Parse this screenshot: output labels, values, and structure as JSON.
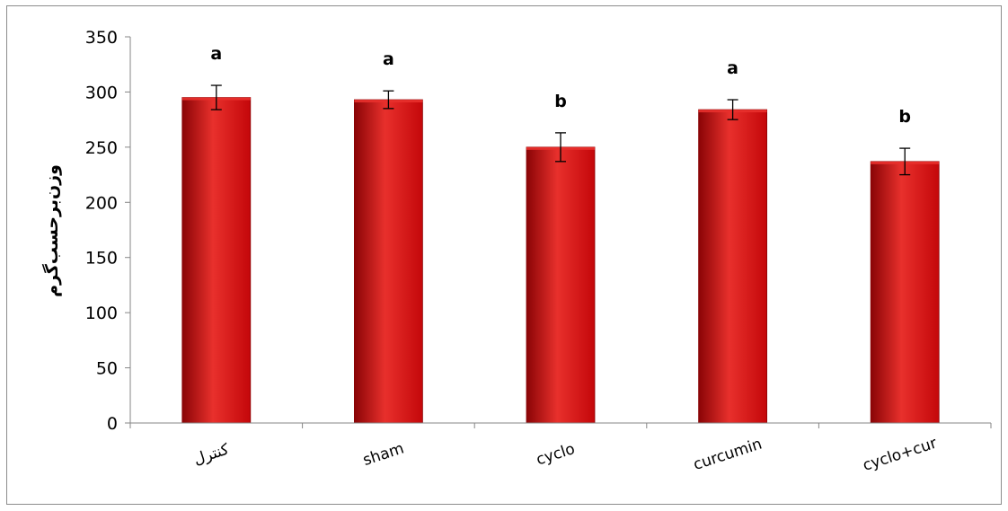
{
  "chart_data": {
    "type": "bar",
    "title": "",
    "xlabel": "",
    "ylabel": "وزن‌بر‌حسب‌گرم",
    "categories": [
      "کنترل",
      "sham",
      "cyclo",
      "curcumin",
      "cyclo+cur"
    ],
    "values": [
      295,
      293,
      250,
      284,
      237
    ],
    "errors": [
      11,
      8,
      13,
      9,
      12
    ],
    "annotations": [
      "a",
      "a",
      "b",
      "a",
      "b"
    ],
    "ylim": [
      0,
      350
    ],
    "yticks": [
      0,
      50,
      100,
      150,
      200,
      250,
      300,
      350
    ],
    "grid": false,
    "legend": "none",
    "bar_color": "#c4070a",
    "bar_highlight": "#e8302c",
    "bar_shadow": "#8a0406"
  }
}
